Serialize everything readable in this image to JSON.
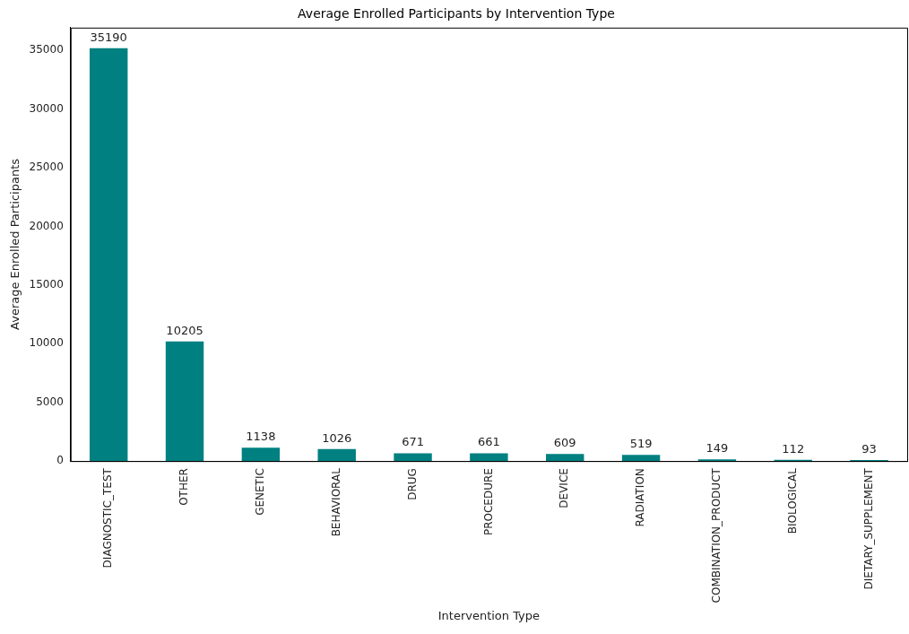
{
  "chart_data": {
    "type": "bar",
    "title": "Average Enrolled Participants by Intervention Type",
    "xlabel": "Intervention Type",
    "ylabel": "Average Enrolled Participants",
    "categories": [
      "DIAGNOSTIC_TEST",
      "OTHER",
      "GENETIC",
      "BEHAVIORAL",
      "DRUG",
      "PROCEDURE",
      "DEVICE",
      "RADIATION",
      "COMBINATION_PRODUCT",
      "BIOLOGICAL",
      "DIETARY_SUPPLEMENT"
    ],
    "values": [
      35190,
      10205,
      1138,
      1026,
      671,
      661,
      609,
      519,
      149,
      112,
      93
    ],
    "color": "#008080",
    "ylim": [
      0,
      36950
    ],
    "yticks": [
      0,
      5000,
      10000,
      15000,
      20000,
      25000,
      30000,
      35000
    ],
    "grid": false,
    "data_labels": true
  }
}
